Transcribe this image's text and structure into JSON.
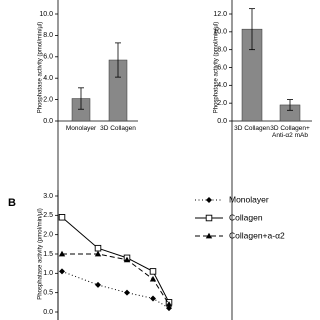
{
  "chart_data": [
    {
      "type": "bar",
      "y_label": "Phosphatase activity (pmol/min/µl)",
      "categories": [
        "Monolayer",
        "3D Collagen"
      ],
      "values": [
        2.1,
        5.7
      ],
      "errors": [
        1.0,
        1.6
      ],
      "color": "#888888",
      "ylim": [
        0,
        10
      ],
      "yticks": [
        {
          "value": 0,
          "label": "0.0"
        },
        {
          "value": 2,
          "label": "2.0"
        },
        {
          "value": 4,
          "label": "4.0"
        },
        {
          "value": 6,
          "label": "6.0"
        },
        {
          "value": 8,
          "label": "8.0"
        },
        {
          "value": 10,
          "label": "10.0"
        }
      ]
    },
    {
      "type": "bar",
      "y_label": "Phosphatase activity (pmol/min/µl)",
      "categories": [
        "3D Collagen",
        "3D Collagen+ Anti-α2 mAb"
      ],
      "values": [
        10.3,
        1.8
      ],
      "errors": [
        2.3,
        0.6
      ],
      "color": "#888888",
      "ylim": [
        0,
        12
      ],
      "yticks": [
        {
          "value": 0,
          "label": "0.0"
        },
        {
          "value": 2,
          "label": "2.0"
        },
        {
          "value": 4,
          "label": "4.0"
        },
        {
          "value": 6,
          "label": "6.0"
        },
        {
          "value": 8,
          "label": "8.0"
        },
        {
          "value": 10,
          "label": "10.0"
        },
        {
          "value": 12,
          "label": "12.0"
        }
      ]
    },
    {
      "type": "line",
      "panel_label": "B",
      "y_label": "Phosphatase activity (pmol/min/µl)",
      "categories": [
        null,
        null,
        null,
        null,
        null
      ],
      "series": [
        {
          "name": "Monolayer",
          "color": "#000000",
          "linestyle": "dotted",
          "marker": "diamond",
          "values": [
            1.05,
            0.7,
            0.5,
            0.35,
            0.1
          ]
        },
        {
          "name": "Collagen",
          "color": "#000000",
          "linestyle": "solid",
          "marker": "square",
          "values": [
            2.45,
            1.65,
            1.4,
            1.05,
            0.25
          ]
        },
        {
          "name": "Collagen+a-α2",
          "color": "#000000",
          "linestyle": "dashed",
          "marker": "triangle",
          "values": [
            1.5,
            1.5,
            1.35,
            0.85,
            0.2
          ]
        }
      ],
      "ylim": [
        0,
        3
      ],
      "yticks": [
        {
          "value": 0,
          "label": "0.0"
        },
        {
          "value": 0.5,
          "label": "0.5"
        },
        {
          "value": 1,
          "label": "1.0"
        },
        {
          "value": 1.5,
          "label": "1.5"
        },
        {
          "value": 2,
          "label": "2.0"
        },
        {
          "value": 2.5,
          "label": "2.5"
        },
        {
          "value": 3,
          "label": "3.0"
        }
      ],
      "legend": "upper right"
    }
  ]
}
